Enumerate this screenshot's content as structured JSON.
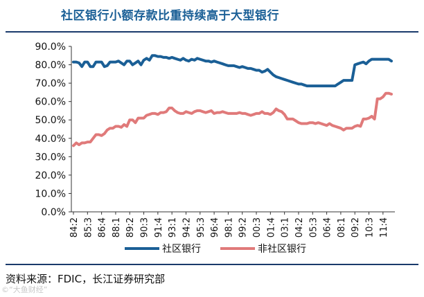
{
  "figure": {
    "source_label": "资料来源：FDIC，长江证券研究部",
    "watermark": "©“大鱼财经”"
  },
  "chart_data": {
    "type": "line",
    "title": "社区银行小额存款比重持续高于大型银行",
    "xlabel": "",
    "ylabel": "",
    "ylim": [
      0,
      90
    ],
    "y_tick_labels": [
      "0.0%",
      "10.0%",
      "20.0%",
      "30.0%",
      "40.0%",
      "50.0%",
      "60.0%",
      "70.0%",
      "80.0%",
      "90.0%"
    ],
    "x_tick_labels": [
      "84:2",
      "85:3",
      "86:4",
      "88:1",
      "89:2",
      "90:3",
      "91:4",
      "93:1",
      "94:2",
      "95:3",
      "96:4",
      "98:1",
      "99:2",
      "00:3",
      "01:4",
      "03:1",
      "04:2",
      "05:3",
      "06:4",
      "08:1",
      "09:2",
      "10:3",
      "11:4"
    ],
    "grid": false,
    "legend_position": "bottom",
    "x_start": "84:2",
    "x_end": "12:3",
    "series": [
      {
        "name": "社区银行",
        "color": "#1a5f96",
        "x": [
          "84:2",
          "84:3",
          "84:4",
          "85:1",
          "85:2",
          "85:3",
          "85:4",
          "86:1",
          "86:2",
          "86:3",
          "86:4",
          "87:1",
          "87:2",
          "87:3",
          "87:4",
          "88:1",
          "88:2",
          "88:3",
          "88:4",
          "89:1",
          "89:2",
          "89:3",
          "89:4",
          "90:1",
          "90:2",
          "90:3",
          "90:4",
          "91:1",
          "91:2",
          "91:3",
          "91:4",
          "92:1",
          "92:2",
          "92:3",
          "92:4",
          "93:1",
          "93:2",
          "93:3",
          "93:4",
          "94:1",
          "94:2",
          "94:3",
          "94:4",
          "95:1",
          "95:2",
          "95:3",
          "95:4",
          "96:1",
          "96:2",
          "96:3",
          "96:4",
          "97:1",
          "97:2",
          "97:3",
          "97:4",
          "98:1",
          "98:2",
          "98:3",
          "98:4",
          "99:1",
          "99:2",
          "99:3",
          "99:4",
          "00:1",
          "00:2",
          "00:3",
          "00:4",
          "01:1",
          "01:2",
          "01:3",
          "01:4",
          "02:1",
          "02:2",
          "02:3",
          "02:4",
          "03:1",
          "03:2",
          "03:3",
          "03:4",
          "04:1",
          "04:2",
          "04:3",
          "04:4",
          "05:1",
          "05:2",
          "05:3",
          "05:4",
          "06:1",
          "06:2",
          "06:3",
          "06:4",
          "07:1",
          "07:2",
          "07:3",
          "07:4",
          "08:1",
          "08:2",
          "08:3",
          "08:4",
          "09:1",
          "09:2",
          "09:3",
          "09:4",
          "10:1",
          "10:2",
          "10:3",
          "10:4",
          "11:1",
          "11:2",
          "11:3",
          "11:4",
          "12:1",
          "12:2",
          "12:3"
        ],
        "values": [
          81.5,
          81.5,
          81.0,
          79.0,
          81.5,
          81.5,
          79.0,
          79.0,
          81.5,
          81.5,
          81.5,
          79.0,
          79.5,
          81.5,
          81.5,
          81.5,
          82.0,
          81.0,
          80.0,
          82.0,
          82.0,
          80.0,
          81.0,
          82.0,
          80.0,
          82.5,
          83.5,
          82.5,
          85.0,
          85.0,
          84.5,
          84.5,
          84.0,
          84.0,
          83.5,
          84.0,
          83.5,
          83.0,
          82.5,
          83.5,
          82.5,
          82.0,
          83.0,
          82.5,
          83.5,
          83.0,
          82.5,
          82.0,
          82.0,
          81.5,
          82.0,
          81.5,
          81.0,
          80.5,
          80.0,
          79.5,
          79.5,
          79.5,
          79.0,
          78.5,
          79.0,
          78.5,
          78.0,
          78.0,
          77.5,
          77.0,
          77.0,
          76.0,
          76.5,
          77.5,
          76.0,
          74.5,
          73.5,
          73.0,
          72.5,
          72.0,
          71.5,
          71.0,
          70.5,
          70.0,
          69.5,
          69.5,
          69.0,
          68.5,
          68.5,
          68.5,
          68.5,
          68.5,
          68.5,
          68.5,
          68.5,
          68.5,
          68.5,
          68.5,
          69.5,
          70.5,
          71.5,
          71.5,
          71.5,
          71.5,
          80.0,
          80.5,
          81.0,
          81.5,
          80.5,
          82.0,
          83.0,
          83.0,
          83.0,
          83.0,
          83.0,
          83.0,
          83.0,
          82.0
        ]
      },
      {
        "name": "非社区银行",
        "color": "#e07a7a",
        "x": [
          "84:2",
          "84:3",
          "84:4",
          "85:1",
          "85:2",
          "85:3",
          "85:4",
          "86:1",
          "86:2",
          "86:3",
          "86:4",
          "87:1",
          "87:2",
          "87:3",
          "87:4",
          "88:1",
          "88:2",
          "88:3",
          "88:4",
          "89:1",
          "89:2",
          "89:3",
          "89:4",
          "90:1",
          "90:2",
          "90:3",
          "90:4",
          "91:1",
          "91:2",
          "91:3",
          "91:4",
          "92:1",
          "92:2",
          "92:3",
          "92:4",
          "93:1",
          "93:2",
          "93:3",
          "93:4",
          "94:1",
          "94:2",
          "94:3",
          "94:4",
          "95:1",
          "95:2",
          "95:3",
          "95:4",
          "96:1",
          "96:2",
          "96:3",
          "96:4",
          "97:1",
          "97:2",
          "97:3",
          "97:4",
          "98:1",
          "98:2",
          "98:3",
          "98:4",
          "99:1",
          "99:2",
          "99:3",
          "99:4",
          "00:1",
          "00:2",
          "00:3",
          "00:4",
          "01:1",
          "01:2",
          "01:3",
          "01:4",
          "02:1",
          "02:2",
          "02:3",
          "02:4",
          "03:1",
          "03:2",
          "03:3",
          "03:4",
          "04:1",
          "04:2",
          "04:3",
          "04:4",
          "05:1",
          "05:2",
          "05:3",
          "05:4",
          "06:1",
          "06:2",
          "06:3",
          "06:4",
          "07:1",
          "07:2",
          "07:3",
          "07:4",
          "08:1",
          "08:2",
          "08:3",
          "08:4",
          "09:1",
          "09:2",
          "09:3",
          "09:4",
          "10:1",
          "10:2",
          "10:3",
          "10:4",
          "11:1",
          "11:2",
          "11:3",
          "11:4",
          "12:1",
          "12:2",
          "12:3"
        ],
        "values": [
          36.0,
          37.5,
          36.5,
          37.5,
          37.5,
          38.0,
          38.0,
          40.0,
          42.0,
          42.0,
          41.5,
          42.5,
          44.5,
          45.5,
          45.5,
          46.5,
          46.5,
          46.0,
          47.5,
          46.5,
          50.0,
          50.0,
          48.5,
          51.0,
          51.0,
          51.0,
          52.5,
          53.0,
          53.5,
          53.5,
          53.0,
          54.0,
          54.0,
          54.5,
          56.5,
          56.5,
          55.0,
          54.0,
          53.5,
          53.5,
          54.5,
          54.0,
          53.5,
          54.5,
          55.0,
          55.0,
          54.5,
          54.0,
          54.5,
          55.0,
          53.5,
          54.0,
          54.0,
          54.5,
          54.0,
          53.5,
          53.5,
          53.5,
          53.5,
          54.0,
          53.5,
          53.5,
          53.0,
          52.5,
          53.0,
          53.5,
          53.5,
          54.5,
          53.5,
          53.5,
          53.0,
          54.0,
          56.0,
          55.0,
          54.5,
          53.0,
          50.5,
          50.5,
          50.5,
          49.5,
          48.5,
          48.0,
          48.0,
          48.0,
          48.5,
          48.5,
          48.0,
          48.5,
          48.0,
          47.5,
          47.0,
          48.0,
          47.0,
          46.5,
          46.0,
          45.5,
          44.5,
          45.5,
          45.5,
          45.5,
          46.5,
          47.0,
          46.5,
          50.5,
          50.5,
          51.0,
          52.0,
          50.5,
          61.5,
          61.5,
          62.5,
          64.5,
          64.5,
          64.0
        ]
      }
    ]
  }
}
